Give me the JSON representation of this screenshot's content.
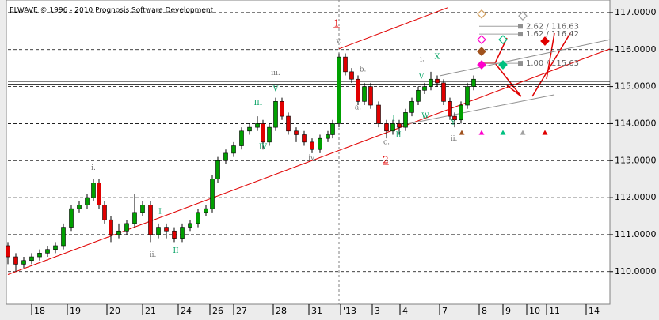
{
  "chart_data": {
    "type": "candlestick",
    "title": "ELWAVE © 1996 - 2010 Prognosis Software Development",
    "up_color": "#00a000",
    "down_color": "#e00000",
    "x": [
      0,
      2,
      4,
      6,
      8,
      10,
      12,
      14,
      16,
      18,
      20,
      21.6,
      23,
      24.4,
      26,
      28,
      30,
      32,
      34,
      36,
      38,
      40,
      42,
      44,
      46,
      48,
      50,
      51.6,
      53,
      55,
      57,
      59,
      61,
      63,
      64.4,
      66,
      67.6,
      69.2,
      70.8,
      72.8,
      74.8,
      76.8,
      78.8,
      80.8,
      82,
      83.6,
      85.2,
      86.8,
      88.4,
      90,
      91.6,
      93.6,
      95.6,
      97.2,
      98.8,
      100.4,
      102,
      103.6,
      105.2,
      106.8,
      108.4,
      110,
      111.6,
      112.8,
      114.4,
      116,
      117.6
    ],
    "open": [
      110.7,
      110.4,
      110.2,
      110.3,
      110.4,
      110.5,
      110.6,
      110.7,
      111.2,
      111.7,
      111.8,
      112.0,
      112.4,
      111.8,
      111.4,
      111.0,
      111.1,
      111.3,
      111.6,
      111.8,
      111.0,
      111.2,
      111.1,
      110.9,
      111.2,
      111.3,
      111.6,
      111.7,
      112.5,
      113.0,
      113.2,
      113.4,
      113.8,
      113.9,
      114.0,
      113.5,
      113.9,
      114.6,
      114.2,
      113.8,
      113.7,
      113.5,
      113.3,
      113.6,
      113.7,
      114.0,
      115.8,
      115.4,
      115.2,
      114.6,
      115.0,
      114.5,
      114.0,
      113.8,
      114.0,
      113.9,
      114.3,
      114.6,
      114.9,
      115.0,
      115.2,
      115.1,
      114.6,
      114.2,
      114.1,
      114.5,
      115.0
    ],
    "high": [
      110.8,
      110.5,
      110.4,
      110.5,
      110.6,
      110.7,
      110.8,
      111.3,
      111.8,
      111.9,
      112.1,
      112.5,
      112.5,
      111.9,
      111.5,
      111.3,
      111.4,
      112.1,
      111.9,
      111.9,
      111.3,
      111.3,
      111.2,
      111.3,
      111.4,
      111.7,
      111.8,
      112.6,
      113.1,
      113.3,
      113.5,
      113.9,
      114.0,
      114.2,
      114.1,
      114.0,
      114.7,
      114.7,
      114.3,
      113.9,
      113.8,
      113.6,
      113.7,
      113.8,
      114.1,
      115.9,
      115.9,
      115.5,
      115.3,
      115.1,
      115.1,
      114.6,
      114.1,
      114.1,
      114.1,
      114.4,
      114.7,
      115.0,
      115.1,
      115.4,
      115.3,
      115.2,
      114.7,
      114.3,
      114.6,
      115.1,
      115.3
    ],
    "low": [
      110.2,
      110.0,
      110.1,
      110.2,
      110.3,
      110.4,
      110.5,
      110.6,
      111.1,
      111.6,
      111.7,
      111.9,
      111.7,
      111.3,
      110.8,
      110.9,
      111.0,
      111.2,
      111.5,
      110.8,
      110.9,
      110.9,
      110.8,
      110.8,
      111.1,
      111.2,
      111.5,
      111.6,
      112.4,
      112.9,
      113.1,
      113.3,
      113.7,
      113.8,
      113.3,
      113.4,
      113.8,
      114.1,
      113.7,
      113.5,
      113.4,
      113.2,
      113.2,
      113.5,
      113.6,
      113.9,
      115.3,
      115.1,
      114.5,
      114.5,
      114.4,
      113.9,
      113.6,
      113.7,
      113.7,
      113.8,
      114.2,
      114.5,
      114.8,
      114.9,
      115.0,
      114.5,
      114.1,
      113.9,
      114.0,
      114.4,
      114.9
    ],
    "close": [
      110.4,
      110.2,
      110.3,
      110.4,
      110.5,
      110.6,
      110.7,
      111.2,
      111.7,
      111.8,
      112.0,
      112.4,
      111.8,
      111.4,
      111.0,
      111.1,
      111.3,
      111.6,
      111.8,
      111.0,
      111.2,
      111.1,
      110.9,
      111.2,
      111.3,
      111.6,
      111.7,
      112.5,
      113.0,
      113.2,
      113.4,
      113.8,
      113.9,
      114.0,
      113.5,
      113.9,
      114.6,
      114.2,
      113.8,
      113.7,
      113.5,
      113.3,
      113.6,
      113.7,
      114.0,
      115.8,
      115.4,
      115.2,
      114.6,
      115.0,
      114.5,
      114.0,
      113.8,
      114.0,
      113.9,
      114.3,
      114.6,
      114.9,
      115.0,
      115.2,
      115.1,
      114.6,
      114.2,
      114.1,
      114.5,
      115.0,
      115.2
    ],
    "xlim": [
      0,
      152
    ],
    "ylim": [
      109.12,
      117.34
    ],
    "yticks": [
      {
        "value": 110,
        "label": "110.0000"
      },
      {
        "value": 111,
        "label": "111.0000"
      },
      {
        "value": 112,
        "label": "112.0000"
      },
      {
        "value": 113,
        "label": "113.0000"
      },
      {
        "value": 114,
        "label": "114.0000"
      },
      {
        "value": 115,
        "label": "115.0000"
      },
      {
        "value": 116,
        "label": "116.0000"
      },
      {
        "value": 117,
        "label": "117.0000"
      }
    ],
    "xticks": [
      {
        "value": 6,
        "label": "18"
      },
      {
        "value": 15,
        "label": "19"
      },
      {
        "value": 25,
        "label": "20"
      },
      {
        "value": 34,
        "label": "21"
      },
      {
        "value": 43,
        "label": "24"
      },
      {
        "value": 51,
        "label": "26"
      },
      {
        "value": 57,
        "label": "27"
      },
      {
        "value": 67,
        "label": "28"
      },
      {
        "value": 76,
        "label": "31"
      },
      {
        "value": 84,
        "label": "'13"
      },
      {
        "value": 92,
        "label": "3"
      },
      {
        "value": 99,
        "label": "4"
      },
      {
        "value": 109,
        "label": "7"
      },
      {
        "value": 119,
        "label": "8"
      },
      {
        "value": 125,
        "label": "9"
      },
      {
        "value": 131,
        "label": "10"
      },
      {
        "value": 136,
        "label": "11"
      },
      {
        "value": 146,
        "label": "14"
      }
    ],
    "grid": true,
    "price_lines": [
      115.14,
      115.06
    ],
    "trendlines": [
      {
        "color": "#e00000",
        "x": [
          0,
          152
        ],
        "y": [
          109.92,
          116.02
        ]
      },
      {
        "color": "#e00000",
        "x": [
          83.6,
          111
        ],
        "y": [
          116.02,
          117.13
        ]
      },
      {
        "color": "#909090",
        "x": [
          109,
          152
        ],
        "y": [
          115.29,
          116.27
        ]
      },
      {
        "color": "#909090",
        "x": [
          98,
          138
        ],
        "y": [
          113.93,
          114.78
        ]
      }
    ],
    "annotations": [
      {
        "text": "i.",
        "x": 21.6,
        "y": 112.8,
        "color": "#707070"
      },
      {
        "text": "I",
        "x": 38.4,
        "y": 111.62,
        "color": "#00a060"
      },
      {
        "text": "ii.",
        "x": 36.6,
        "y": 110.45,
        "color": "#707070"
      },
      {
        "text": "II",
        "x": 42.4,
        "y": 110.56,
        "color": "#00a060"
      },
      {
        "text": "iii.",
        "x": 67.6,
        "y": 115.36,
        "color": "#707070"
      },
      {
        "text": "III",
        "x": 63.2,
        "y": 114.55,
        "color": "#00a060"
      },
      {
        "text": "IV",
        "x": 64.4,
        "y": 113.37,
        "color": "#00a060"
      },
      {
        "text": "V",
        "x": 67.6,
        "y": 114.93,
        "color": "#00a060"
      },
      {
        "text": "iv.",
        "x": 76.8,
        "y": 113.07,
        "color": "#707070"
      },
      {
        "text": "v.",
        "x": 83.6,
        "y": 116.23,
        "color": "#707070"
      },
      {
        "text": "a.",
        "x": 88.4,
        "y": 114.44,
        "color": "#707070"
      },
      {
        "text": "b.",
        "x": 89.6,
        "y": 115.46,
        "color": "#707070"
      },
      {
        "text": "c.",
        "x": 95.6,
        "y": 113.5,
        "color": "#707070"
      },
      {
        "text": "I",
        "x": 97.4,
        "y": 114.14,
        "color": "#00a060"
      },
      {
        "text": "II",
        "x": 98.6,
        "y": 113.69,
        "color": "#00a060"
      },
      {
        "text": "i.",
        "x": 104.6,
        "y": 115.74,
        "color": "#707070"
      },
      {
        "text": "X",
        "x": 108.4,
        "y": 115.8,
        "color": "#00a060"
      },
      {
        "text": "V",
        "x": 104.4,
        "y": 115.27,
        "color": "#00a060"
      },
      {
        "text": "W",
        "x": 105.4,
        "y": 114.2,
        "color": "#00a060"
      },
      {
        "text": "Y",
        "x": 112.4,
        "y": 114.03,
        "color": "#00a060"
      },
      {
        "text": "ii.",
        "x": 112.6,
        "y": 113.59,
        "color": "#707070"
      },
      {
        "text": "1",
        "x": 83,
        "y": 116.7,
        "color": "#e00000"
      },
      {
        "text": "2",
        "x": 95.4,
        "y": 113.01,
        "color": "#e00000"
      }
    ],
    "targets": [
      {
        "label": "2.62 / 116.63",
        "value": 116.63
      },
      {
        "label": "1.62 / 116.42",
        "value": 116.42
      },
      {
        "label": "1.00 / 115.63",
        "value": 115.63
      }
    ],
    "diamonds": [
      {
        "x": 119.6,
        "y": 116.96,
        "color": "#d2a060",
        "filled": false
      },
      {
        "x": 119.6,
        "y": 115.95,
        "color": "#a0521d",
        "filled": true
      },
      {
        "x": 119.6,
        "y": 116.27,
        "color": "#ff00cc",
        "filled": false
      },
      {
        "x": 119.6,
        "y": 115.59,
        "color": "#ff00cc",
        "filled": true
      },
      {
        "x": 125,
        "y": 116.27,
        "color": "#00c080",
        "filled": false
      },
      {
        "x": 125,
        "y": 115.59,
        "color": "#00c080",
        "filled": true
      },
      {
        "x": 130,
        "y": 116.91,
        "color": "#a0a0a0",
        "filled": false
      },
      {
        "x": 135.6,
        "y": 116.23,
        "color": "#e00000",
        "filled": true
      }
    ],
    "triangles": [
      {
        "x": 114.6,
        "y": 113.76,
        "color": "#a0521d"
      },
      {
        "x": 119.6,
        "y": 113.76,
        "color": "#ff00cc"
      },
      {
        "x": 125,
        "y": 113.76,
        "color": "#00c080"
      },
      {
        "x": 130,
        "y": 113.76,
        "color": "#a0a0a0"
      },
      {
        "x": 135.6,
        "y": 113.76,
        "color": "#e00000"
      }
    ]
  }
}
